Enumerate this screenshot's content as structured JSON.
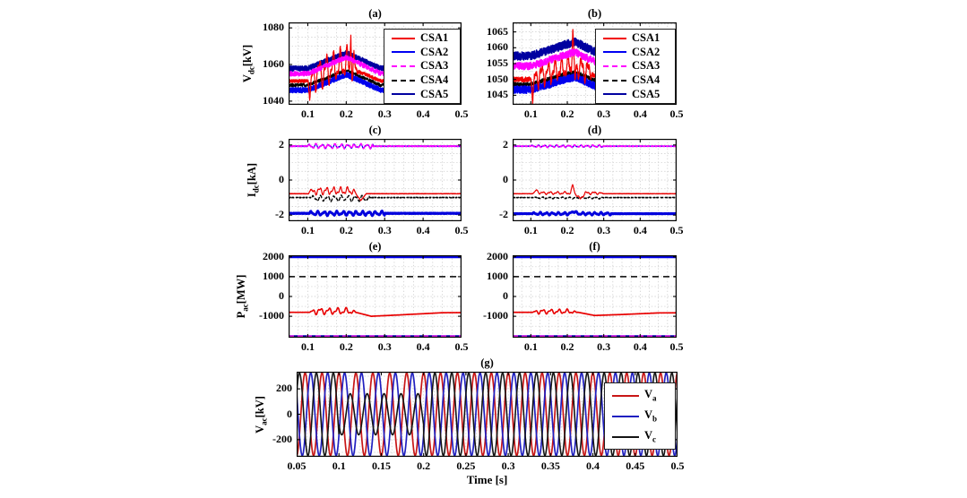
{
  "figure": {
    "xlabel": "Time [s]",
    "background": "#ffffff",
    "grid_color": "#c9c9c9",
    "axis_color": "#000000"
  },
  "chart_data": [
    {
      "id": "a",
      "type": "line",
      "title": "(a)",
      "ylabel": {
        "main": "V",
        "sub": "dc",
        "unit": "[kV]"
      },
      "xlim": [
        0.05,
        0.5
      ],
      "ylim": [
        1038,
        1083
      ],
      "xtick_vals": [
        0.1,
        0.2,
        0.3,
        0.4,
        0.5
      ],
      "xtick_labels": [
        "0.1",
        "0.2",
        "0.3",
        "0.4",
        "0.5"
      ],
      "ytick_vals": [
        1080,
        1060,
        1040
      ],
      "ytick_labels": [
        "1080",
        "1060",
        "1040"
      ],
      "grid": {
        "xminor": 0.025,
        "yminor": 5
      },
      "legend": {
        "position": "top-right",
        "entries": [
          {
            "label": "CSA1",
            "color": "#f20000",
            "dash": false
          },
          {
            "label": "CSA2",
            "color": "#0000f2",
            "dash": false
          },
          {
            "label": "CSA3",
            "color": "#ff00ff",
            "dash": true
          },
          {
            "label": "CSA4",
            "color": "#000000",
            "dash": true
          },
          {
            "label": "CSA5",
            "color": "#0000a0",
            "dash": false
          }
        ]
      },
      "series": [
        {
          "name": "CSA4",
          "color": "#000000",
          "dash": [
            5,
            3
          ],
          "width": 1.3,
          "base": 1048.7,
          "noise": 0.9,
          "bump": {
            "start": 0.1,
            "peak": 0.2,
            "end": 0.29,
            "amp": 8
          }
        },
        {
          "name": "CSA2",
          "color": "#0000ee",
          "width": 1.6,
          "base": 1046.0,
          "noise": 1.4,
          "bump": {
            "start": 0.1,
            "peak": 0.2,
            "end": 0.29,
            "amp": 8.5
          }
        },
        {
          "name": "CSA5",
          "color": "#0000a0",
          "width": 1.6,
          "base": 1057.8,
          "noise": 1.4,
          "bump": {
            "start": 0.1,
            "peak": 0.2,
            "end": 0.29,
            "amp": 8.5
          }
        },
        {
          "name": "CSA1",
          "color": "#f20000",
          "width": 1.2,
          "base": 1051.0,
          "noise": 0.9,
          "bump": {
            "start": 0.1,
            "peak": 0.2,
            "end": 0.29,
            "amp": 8
          },
          "osc": {
            "start": 0.107,
            "end": 0.232,
            "freq": 55,
            "amp": 9,
            "offset": 2
          },
          "spikes": [
            {
              "t": 0.105,
              "dv": -11,
              "w": 0.004
            },
            {
              "t": 0.212,
              "dv": 21,
              "w": 0.003
            },
            {
              "t": 0.217,
              "dv": -9,
              "w": 0.003
            }
          ]
        },
        {
          "name": "CSA3",
          "color": "#ff00ff",
          "dash": [
            6,
            4
          ],
          "width": 1.8,
          "base": 1055.0,
          "noise": 1.2,
          "bump": {
            "start": 0.1,
            "peak": 0.2,
            "end": 0.29,
            "amp": 9
          }
        }
      ]
    },
    {
      "id": "b",
      "type": "line",
      "title": "(b)",
      "ylabel": null,
      "xlim": [
        0.05,
        0.5
      ],
      "ylim": [
        1042,
        1068
      ],
      "xtick_vals": [
        0.1,
        0.2,
        0.3,
        0.4,
        0.5
      ],
      "xtick_labels": [
        "0.1",
        "0.2",
        "0.3",
        "0.4",
        "0.5"
      ],
      "ytick_vals": [
        1065,
        1060,
        1055,
        1050,
        1045
      ],
      "ytick_labels": [
        "1065",
        "1060",
        "1055",
        "1050",
        "1045"
      ],
      "grid": {
        "xminor": 0.025,
        "yminor": 2.5
      },
      "legend": {
        "position": "top-right",
        "entries": [
          {
            "label": "CSA1",
            "color": "#f20000",
            "dash": false
          },
          {
            "label": "CSA2",
            "color": "#0000f2",
            "dash": false
          },
          {
            "label": "CSA3",
            "color": "#ff00ff",
            "dash": true
          },
          {
            "label": "CSA4",
            "color": "#000000",
            "dash": true
          },
          {
            "label": "CSA5",
            "color": "#0000a0",
            "dash": false
          }
        ]
      },
      "series": [
        {
          "name": "CSA4",
          "color": "#000000",
          "dash": [
            5,
            3
          ],
          "width": 1.3,
          "base": 1048.4,
          "noise": 0.7,
          "bump": {
            "start": 0.1,
            "peak": 0.22,
            "end": 0.3,
            "amp": 4
          }
        },
        {
          "name": "CSA2",
          "color": "#0000ee",
          "width": 1.6,
          "base": 1046.8,
          "noise": 1.2,
          "bump": {
            "start": 0.1,
            "peak": 0.22,
            "end": 0.3,
            "amp": 4
          }
        },
        {
          "name": "CSA5",
          "color": "#0000a0",
          "width": 1.6,
          "base": 1057.4,
          "noise": 1.3,
          "bump": {
            "start": 0.1,
            "peak": 0.22,
            "end": 0.3,
            "amp": 4.5
          }
        },
        {
          "name": "CSA1",
          "color": "#f20000",
          "width": 1.2,
          "base": 1050.0,
          "noise": 0.8,
          "bump": {
            "start": 0.1,
            "peak": 0.22,
            "end": 0.3,
            "amp": 4
          },
          "osc": {
            "start": 0.107,
            "end": 0.27,
            "freq": 55,
            "amp": 3.5,
            "offset": 0.5
          },
          "spikes": [
            {
              "t": 0.105,
              "dv": -8,
              "w": 0.004
            },
            {
              "t": 0.215,
              "dv": 14,
              "w": 0.0035
            },
            {
              "t": 0.221,
              "dv": -7,
              "w": 0.003
            }
          ]
        },
        {
          "name": "CSA3",
          "color": "#ff00ff",
          "dash": [
            6,
            4
          ],
          "width": 1.8,
          "base": 1054.2,
          "noise": 1.1,
          "bump": {
            "start": 0.1,
            "peak": 0.22,
            "end": 0.3,
            "amp": 4.5
          }
        }
      ]
    },
    {
      "id": "c",
      "type": "line",
      "title": "(c)",
      "ylabel": {
        "main": "I",
        "sub": "dc",
        "unit": "[kA]"
      },
      "xlim": [
        0.05,
        0.5
      ],
      "ylim": [
        -2.35,
        2.35
      ],
      "xtick_vals": [
        0.1,
        0.2,
        0.3,
        0.4,
        0.5
      ],
      "xtick_labels": [
        "0.1",
        "0.2",
        "0.3",
        "0.4",
        "0.5"
      ],
      "ytick_vals": [
        2,
        0,
        -2
      ],
      "ytick_labels": [
        "2",
        "0",
        "-2"
      ],
      "grid": {
        "xminor": 0.025,
        "yminor": 0.5
      },
      "legend": null,
      "series": [
        {
          "name": "Idc-pos-blue",
          "color": "#0000ee",
          "width": 1.2,
          "base": 1.93,
          "noise": 0.02,
          "ripple": {
            "start": 0.1,
            "end": 0.27,
            "freq": 60,
            "amp": 0.12
          }
        },
        {
          "name": "Idc-pos-magenta",
          "color": "#ff00ff",
          "dash": [
            5,
            3
          ],
          "width": 1.6,
          "base": 1.93,
          "noise": 0.02,
          "ripple": {
            "start": 0.1,
            "end": 0.27,
            "freq": 60,
            "amp": 0.14
          }
        },
        {
          "name": "Idc-black",
          "color": "#000000",
          "dash": [
            5,
            3
          ],
          "width": 1.3,
          "base": -1.0,
          "noise": 0.02,
          "ripple": {
            "start": 0.11,
            "end": 0.26,
            "freq": 55,
            "amp": 0.18,
            "offset": -0.05
          }
        },
        {
          "name": "Idc-red",
          "color": "#e80000",
          "width": 1.2,
          "base": -0.78,
          "noise": 0.015,
          "osc": {
            "start": 0.108,
            "end": 0.228,
            "freq": 55,
            "amp": 0.22,
            "offset": 0.16
          },
          "spikes": [
            {
              "t": 0.108,
              "dv": 0.25,
              "w": 0.006
            },
            {
              "t": 0.238,
              "dv": -0.38,
              "w": 0.014
            }
          ]
        },
        {
          "name": "Idc-neg-blue",
          "color": "#0000dd",
          "width": 2.6,
          "base": -1.9,
          "noise": 0.025,
          "ripple": {
            "start": 0.105,
            "end": 0.3,
            "freq": 60,
            "amp": 0.13
          }
        }
      ]
    },
    {
      "id": "d",
      "type": "line",
      "title": "(d)",
      "ylabel": null,
      "xlim": [
        0.05,
        0.5
      ],
      "ylim": [
        -2.35,
        2.35
      ],
      "xtick_vals": [
        0.1,
        0.2,
        0.3,
        0.4,
        0.5
      ],
      "xtick_labels": [
        "0.1",
        "0.2",
        "0.3",
        "0.4",
        "0.5"
      ],
      "ytick_vals": [
        2,
        0,
        -2
      ],
      "ytick_labels": [
        "2",
        "0",
        "-2"
      ],
      "grid": {
        "xminor": 0.025,
        "yminor": 0.5
      },
      "legend": null,
      "series": [
        {
          "name": "Idc-pos-blue",
          "color": "#0000ee",
          "width": 1.2,
          "base": 1.93,
          "noise": 0.015,
          "ripple": {
            "start": 0.1,
            "end": 0.3,
            "freq": 60,
            "amp": 0.06
          }
        },
        {
          "name": "Idc-pos-magenta",
          "color": "#ff00ff",
          "dash": [
            5,
            3
          ],
          "width": 1.6,
          "base": 1.93,
          "noise": 0.015,
          "ripple": {
            "start": 0.1,
            "end": 0.3,
            "freq": 60,
            "amp": 0.07
          }
        },
        {
          "name": "Idc-black",
          "color": "#000000",
          "dash": [
            5,
            3
          ],
          "width": 1.3,
          "base": -1.0,
          "noise": 0.015,
          "ripple": {
            "start": 0.11,
            "end": 0.3,
            "freq": 55,
            "amp": 0.05,
            "offset": -0.02
          }
        },
        {
          "name": "Idc-red",
          "color": "#e80000",
          "width": 1.2,
          "base": -0.78,
          "noise": 0.012,
          "osc": {
            "start": 0.108,
            "end": 0.3,
            "freq": 50,
            "amp": 0.08,
            "offset": 0.04
          },
          "spikes": [
            {
              "t": 0.115,
              "dv": 0.18,
              "w": 0.01
            },
            {
              "t": 0.215,
              "dv": 0.45,
              "w": 0.006
            },
            {
              "t": 0.235,
              "dv": -0.35,
              "w": 0.014
            }
          ]
        },
        {
          "name": "Idc-neg-blue",
          "color": "#0000dd",
          "width": 2.6,
          "base": -1.92,
          "noise": 0.02,
          "ripple": {
            "start": 0.105,
            "end": 0.32,
            "freq": 60,
            "amp": 0.08
          },
          "spikes": [
            {
              "t": 0.218,
              "dv": 0.15,
              "w": 0.01
            }
          ]
        }
      ]
    },
    {
      "id": "e",
      "type": "line",
      "title": "(e)",
      "ylabel": {
        "main": "P",
        "sub": "ac",
        "unit": "[MW]"
      },
      "xlim": [
        0.05,
        0.5
      ],
      "ylim": [
        -2080,
        2080
      ],
      "xtick_vals": [
        0.1,
        0.2,
        0.3,
        0.4,
        0.5
      ],
      "xtick_labels": [
        "0.1",
        "0.2",
        "0.3",
        "0.4",
        "0.5"
      ],
      "ytick_vals": [
        2000,
        1000,
        0,
        -1000
      ],
      "ytick_labels": [
        "2000",
        "1000",
        "0",
        "-1000"
      ],
      "grid": {
        "xminor": 0.025,
        "yminor": 500
      },
      "legend": null,
      "series": [
        {
          "name": "P-blue",
          "color": "#0000ee",
          "width": 3,
          "base": 2000,
          "noise": 0
        },
        {
          "name": "P-black",
          "color": "#000000",
          "dash": [
            7,
            5
          ],
          "width": 1.6,
          "base": 1000,
          "noise": 0
        },
        {
          "name": "P-navy",
          "color": "#0000aa",
          "width": 2.4,
          "base": -2010,
          "noise": 0
        },
        {
          "name": "P-magenta",
          "color": "#ff00ff",
          "dash": [
            6,
            4
          ],
          "width": 1.8,
          "base": -2010,
          "noise": 0
        },
        {
          "name": "P-red",
          "color": "#e80000",
          "width": 1.6,
          "base": -800,
          "noise": 4,
          "osc": {
            "start": 0.105,
            "end": 0.225,
            "freq": 45,
            "amp": 170,
            "offset": 60
          },
          "drift": [
            [
              0.05,
              0
            ],
            [
              0.225,
              0
            ],
            [
              0.265,
              -200
            ],
            [
              0.33,
              -140
            ],
            [
              0.45,
              -20
            ],
            [
              0.5,
              -15
            ]
          ]
        }
      ]
    },
    {
      "id": "f",
      "type": "line",
      "title": "(f)",
      "ylabel": null,
      "xlim": [
        0.05,
        0.5
      ],
      "ylim": [
        -2080,
        2080
      ],
      "xtick_vals": [
        0.1,
        0.2,
        0.3,
        0.4,
        0.5
      ],
      "xtick_labels": [
        "0.1",
        "0.2",
        "0.3",
        "0.4",
        "0.5"
      ],
      "ytick_vals": [
        2000,
        1000,
        0,
        -1000
      ],
      "ytick_labels": [
        "2000",
        "1000",
        "0",
        "-1000"
      ],
      "grid": {
        "xminor": 0.025,
        "yminor": 500
      },
      "legend": null,
      "series": [
        {
          "name": "P-blue",
          "color": "#0000ee",
          "width": 3,
          "base": 2000,
          "noise": 0
        },
        {
          "name": "P-black",
          "color": "#000000",
          "dash": [
            7,
            5
          ],
          "width": 1.6,
          "base": 1000,
          "noise": 0
        },
        {
          "name": "P-navy",
          "color": "#0000aa",
          "width": 2.4,
          "base": -2010,
          "noise": 0
        },
        {
          "name": "P-magenta",
          "color": "#ff00ff",
          "dash": [
            6,
            4
          ],
          "width": 1.8,
          "base": -2010,
          "noise": 0
        },
        {
          "name": "P-red",
          "color": "#e80000",
          "width": 1.6,
          "base": -800,
          "noise": 4,
          "osc": {
            "start": 0.105,
            "end": 0.225,
            "freq": 45,
            "amp": 120,
            "offset": 40
          },
          "drift": [
            [
              0.05,
              0
            ],
            [
              0.23,
              0
            ],
            [
              0.275,
              -160
            ],
            [
              0.35,
              -110
            ],
            [
              0.45,
              -30
            ],
            [
              0.5,
              -25
            ]
          ]
        }
      ]
    },
    {
      "id": "g",
      "type": "line",
      "title": "(g)",
      "ylabel": {
        "main": "V",
        "sub": "ac",
        "unit": "[kV]"
      },
      "xlim": [
        0.05,
        0.5
      ],
      "ylim": [
        -335,
        335
      ],
      "xtick_vals": [
        0.05,
        0.1,
        0.15,
        0.2,
        0.25,
        0.3,
        0.35,
        0.4,
        0.45,
        0.5
      ],
      "xtick_labels": [
        "0.05",
        "0.1",
        "0.15",
        "0.2",
        "0.25",
        "0.3",
        "0.35",
        "0.4",
        "0.45",
        "0.5"
      ],
      "ytick_vals": [
        200,
        0,
        -200
      ],
      "ytick_labels": [
        "200",
        "0",
        "-200"
      ],
      "grid": {
        "xminor": 0.0125,
        "yminor": 100
      },
      "legend": {
        "position": "right",
        "entries": [
          {
            "main": "V",
            "sub": "a",
            "color": "#c81616",
            "dash": false
          },
          {
            "main": "V",
            "sub": "b",
            "color": "#2020c0",
            "dash": false
          },
          {
            "main": "V",
            "sub": "c",
            "color": "#141414",
            "dash": false
          }
        ]
      },
      "series": [
        {
          "name": "Va",
          "kind": "sine",
          "color": "#c81616",
          "width": 1.7,
          "amp": 325,
          "freq": 50,
          "phase_deg": 90
        },
        {
          "name": "Vb",
          "kind": "sine",
          "color": "#2020c0",
          "width": 1.7,
          "amp": 325,
          "freq": 50,
          "phase_deg": -30
        },
        {
          "name": "Vc",
          "kind": "sine",
          "color": "#141414",
          "width": 1.6,
          "amp": 325,
          "freq": 50,
          "phase_deg": 210,
          "fault": {
            "start": 0.1,
            "end": 0.2,
            "amp": 162
          }
        }
      ]
    }
  ]
}
